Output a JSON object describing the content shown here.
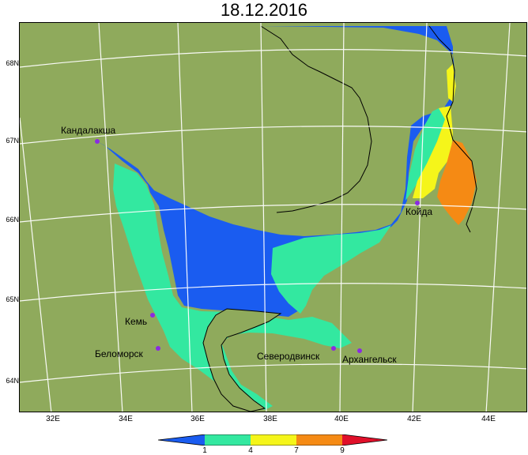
{
  "title": "18.12.2016",
  "lat_labels": [
    "68N",
    "67N",
    "66N",
    "65N",
    "64N"
  ],
  "lon_labels": [
    "32E",
    "34E",
    "36E",
    "38E",
    "40E",
    "42E",
    "44E"
  ],
  "cities": [
    {
      "name": "Кандалакша"
    },
    {
      "name": "Койда"
    },
    {
      "name": "Кемь"
    },
    {
      "name": "Беломорск"
    },
    {
      "name": "Северодвинск"
    },
    {
      "name": "Архангельск"
    }
  ],
  "legend": {
    "ticks": [
      "1",
      "4",
      "7",
      "9"
    ],
    "colors": [
      "#1a5cf0",
      "#33e8a0",
      "#f5f51a",
      "#f58a14",
      "#e0102a"
    ]
  },
  "colors": {
    "land": "#8faa5c",
    "water_low": "#1a5cf0",
    "water_mid": "#33e8a0",
    "water_high": "#f5f51a",
    "water_max": "#f58a14",
    "grid": "#ffffff",
    "city_marker": "#8a2be2"
  }
}
